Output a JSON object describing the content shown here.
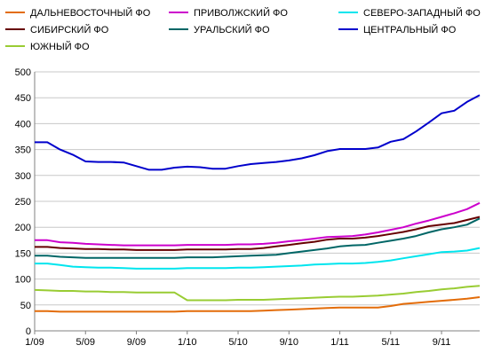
{
  "chart_data": {
    "type": "line",
    "title": "",
    "xlabel": "",
    "ylabel": "",
    "ylim": [
      0,
      500
    ],
    "yticks": [
      0,
      50,
      100,
      150,
      200,
      250,
      300,
      350,
      400,
      450,
      500
    ],
    "grid": "horizontal",
    "legend_position": "top",
    "x": [
      "1/09",
      "2/09",
      "3/09",
      "4/09",
      "5/09",
      "6/09",
      "7/09",
      "8/09",
      "9/09",
      "10/09",
      "11/09",
      "12/09",
      "1/10",
      "2/10",
      "3/10",
      "4/10",
      "5/10",
      "6/10",
      "7/10",
      "8/10",
      "9/10",
      "10/10",
      "11/10",
      "12/10",
      "1/11",
      "2/11",
      "3/11",
      "4/11",
      "5/11",
      "6/11",
      "7/11",
      "8/11",
      "9/11",
      "10/11",
      "11/11",
      "12/11"
    ],
    "xticks": [
      "1/09",
      "5/09",
      "9/09",
      "1/10",
      "5/10",
      "9/10",
      "1/11",
      "5/11",
      "9/11"
    ],
    "series": [
      {
        "name": "ДАЛЬНЕВОСТОЧНЫЙ ФО",
        "color": "#e36c09",
        "values": [
          38,
          38,
          37,
          37,
          37,
          37,
          37,
          37,
          37,
          37,
          37,
          37,
          38,
          38,
          38,
          38,
          38,
          38,
          39,
          40,
          41,
          42,
          43,
          44,
          45,
          45,
          45,
          45,
          48,
          52,
          54,
          56,
          58,
          60,
          62,
          65
        ]
      },
      {
        "name": "ПРИВОЛЖСКИЙ ФО",
        "color": "#cc00cc",
        "values": [
          175,
          175,
          171,
          170,
          168,
          167,
          166,
          165,
          165,
          165,
          165,
          165,
          166,
          166,
          166,
          166,
          167,
          167,
          168,
          170,
          173,
          175,
          178,
          181,
          182,
          183,
          186,
          190,
          195,
          200,
          207,
          213,
          220,
          227,
          235,
          247
        ]
      },
      {
        "name": "СЕВЕРО-ЗАПАДНЫЙ ФО",
        "color": "#00e5ee",
        "values": [
          130,
          130,
          127,
          124,
          123,
          122,
          122,
          121,
          120,
          120,
          120,
          120,
          121,
          121,
          121,
          121,
          122,
          122,
          123,
          124,
          125,
          126,
          128,
          129,
          130,
          130,
          131,
          133,
          136,
          140,
          144,
          148,
          152,
          153,
          155,
          160
        ]
      },
      {
        "name": "СИБИРСКИЙ ФО",
        "color": "#660000",
        "values": [
          162,
          162,
          160,
          159,
          158,
          158,
          157,
          157,
          156,
          156,
          156,
          156,
          157,
          157,
          157,
          157,
          158,
          158,
          160,
          163,
          166,
          169,
          172,
          176,
          178,
          178,
          180,
          183,
          187,
          191,
          196,
          202,
          205,
          208,
          214,
          220
        ]
      },
      {
        "name": "УРАЛЬСКИЙ ФО",
        "color": "#006666",
        "values": [
          145,
          145,
          143,
          142,
          141,
          141,
          141,
          141,
          141,
          141,
          141,
          141,
          142,
          142,
          142,
          143,
          144,
          145,
          146,
          147,
          150,
          153,
          156,
          159,
          163,
          165,
          166,
          170,
          174,
          178,
          183,
          190,
          196,
          200,
          205,
          217
        ]
      },
      {
        "name": "ЦЕНТРАЛЬНЫЙ ФО",
        "color": "#0000cc",
        "values": [
          364,
          364,
          350,
          340,
          327,
          326,
          326,
          325,
          318,
          311,
          311,
          315,
          317,
          316,
          313,
          313,
          318,
          322,
          324,
          326,
          329,
          333,
          339,
          347,
          351,
          351,
          351,
          354,
          365,
          370,
          385,
          402,
          420,
          425,
          442,
          455
        ]
      },
      {
        "name": "ЮЖНЫЙ ФО",
        "color": "#99cc33",
        "values": [
          79,
          78,
          77,
          77,
          76,
          76,
          75,
          75,
          74,
          74,
          74,
          74,
          59,
          59,
          59,
          59,
          60,
          60,
          60,
          61,
          62,
          63,
          64,
          65,
          66,
          66,
          67,
          68,
          70,
          72,
          75,
          77,
          80,
          82,
          85,
          87
        ]
      }
    ]
  }
}
